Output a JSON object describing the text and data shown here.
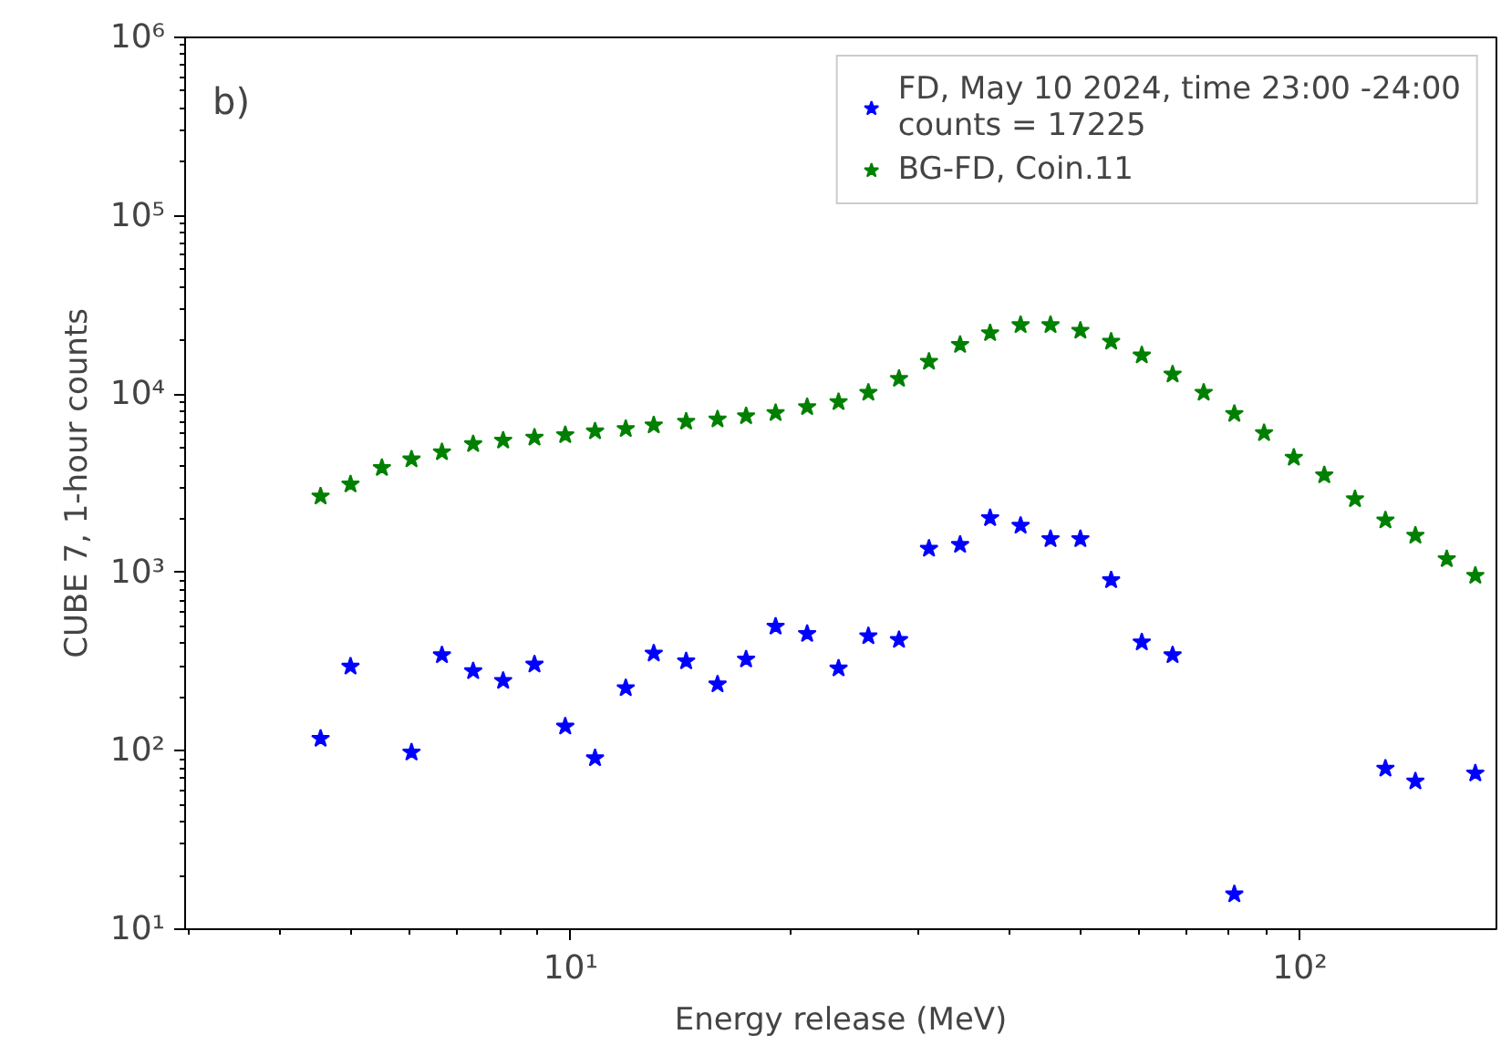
{
  "chart_data": {
    "type": "scatter",
    "xlabel": "Energy release (MeV)",
    "ylabel": "CUBE 7, 1-hour counts",
    "annotations": [
      "b)"
    ],
    "x": [
      4.54,
      4.99,
      5.51,
      6.05,
      6.66,
      7.35,
      8.08,
      8.92,
      9.83,
      10.8,
      11.9,
      13.0,
      14.4,
      15.9,
      17.4,
      19.1,
      21.1,
      23.3,
      25.6,
      28.2,
      31.0,
      34.2,
      37.6,
      41.4,
      45.5,
      50.0,
      55.1,
      60.7,
      66.9,
      73.8,
      81.3,
      89.3,
      98.1,
      108,
      119,
      131,
      144,
      159,
      174
    ],
    "series": [
      {
        "name": "FD, May 10 2024, time 23:00 -24:00\ncounts = 17225",
        "color": "#0000ff",
        "values": [
          117,
          297,
          null,
          98,
          344,
          280,
          247,
          305,
          137,
          91,
          225,
          352,
          318,
          236,
          326,
          498,
          453,
          290,
          440,
          419,
          1360,
          1430,
          2020,
          1830,
          1540,
          1540,
          906,
          406,
          344,
          null,
          15.7,
          null,
          null,
          null,
          null,
          79.6,
          67.5,
          null,
          74.8
        ]
      },
      {
        "name": "BG-FD, Coin.11",
        "color": "#008000",
        "values": [
          2670,
          3120,
          3860,
          4310,
          4730,
          5250,
          5500,
          5710,
          5900,
          6190,
          6380,
          6690,
          7020,
          7230,
          7530,
          7840,
          8470,
          9030,
          10200,
          12200,
          15200,
          18900,
          22000,
          24400,
          24400,
          22700,
          19700,
          16500,
          12900,
          10200,
          7760,
          6050,
          4410,
          3510,
          2580,
          1960,
          1610,
          1190,
          960
        ]
      }
    ],
    "log": "xy",
    "marker": "star",
    "legend": "top right",
    "grid": false,
    "xlim": [
      2.96,
      186
    ],
    "ylim": [
      10,
      1000000
    ],
    "xticks": [
      {
        "value": 10,
        "label": "10¹"
      },
      {
        "value": 100,
        "label": "10²"
      }
    ],
    "yticks": [
      {
        "value": 10,
        "label": "10¹"
      },
      {
        "value": 100,
        "label": "10²"
      },
      {
        "value": 1000,
        "label": "10³"
      },
      {
        "value": 10000,
        "label": "10⁴"
      },
      {
        "value": 100000,
        "label": "10⁵"
      },
      {
        "value": 1000000,
        "label": "10⁶"
      }
    ]
  }
}
